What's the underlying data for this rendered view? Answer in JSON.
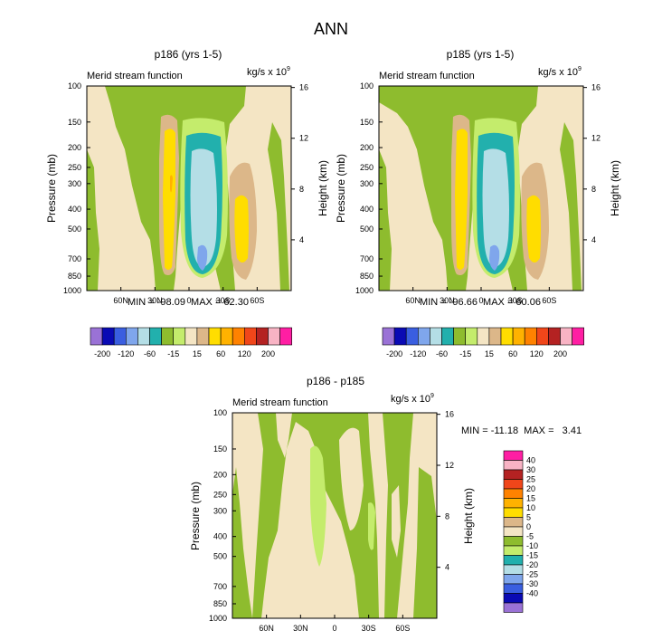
{
  "title": "ANN",
  "colors": {
    "neg200": "#9a72d6",
    "neg120": "#0a0ab4",
    "neg80": "#3a5ee0",
    "neg60": "#7fa6ec",
    "neg40": "#b4dee6",
    "neg25": "#22b0ad",
    "neg15": "#8ebc2e",
    "neg5": "#c4ec6c",
    "zero": "#f4e5c4",
    "pos15": "#dcb789",
    "pos25": "#ffdd00",
    "pos40": "#ffb200",
    "pos60": "#ff8200",
    "pos80": "#f0461a",
    "pos120": "#b42222",
    "pos150": "#f8b3c4",
    "pos200": "#ff1ea3"
  },
  "chart_data": [
    {
      "id": "p186",
      "type": "contour",
      "title": "p186 (yrs 1-5)",
      "subtitle_left": "Merid stream function",
      "units": "kg/s x 10",
      "units_exp": "9",
      "ylabel": "Pressure (mb)",
      "ylabel_right": "Height (km)",
      "ylim": [
        1000,
        100
      ],
      "y_ticks": [
        "100",
        "150",
        "200",
        "250",
        "300",
        "400",
        "500",
        "700",
        "850",
        "1000"
      ],
      "y_tick_values": [
        100,
        150,
        200,
        250,
        300,
        400,
        500,
        700,
        850,
        1000
      ],
      "height_ticks": [
        "16",
        "12",
        "8",
        "4"
      ],
      "height_tick_values": [
        16,
        12,
        8,
        4
      ],
      "x_ticks": [
        "60N",
        "30N",
        "0",
        "30S",
        "60S"
      ],
      "x_tick_values": [
        60,
        30,
        0,
        -30,
        -60
      ],
      "xlim": [
        90,
        -90
      ],
      "stats": "MIN = -98.09  MAX = 62.30",
      "min": -98.09,
      "max": 62.3
    },
    {
      "id": "p185",
      "type": "contour",
      "title": "p185 (yrs 1-5)",
      "subtitle_left": "Merid stream function",
      "units": "kg/s x 10",
      "units_exp": "9",
      "ylabel": "Pressure (mb)",
      "ylabel_right": "Height (km)",
      "ylim": [
        1000,
        100
      ],
      "y_ticks": [
        "100",
        "150",
        "200",
        "250",
        "300",
        "400",
        "500",
        "700",
        "850",
        "1000"
      ],
      "y_tick_values": [
        100,
        150,
        200,
        250,
        300,
        400,
        500,
        700,
        850,
        1000
      ],
      "height_ticks": [
        "16",
        "12",
        "8",
        "4"
      ],
      "height_tick_values": [
        16,
        12,
        8,
        4
      ],
      "x_ticks": [
        "60N",
        "30N",
        "0",
        "30S",
        "60S"
      ],
      "x_tick_values": [
        60,
        30,
        0,
        -30,
        -60
      ],
      "xlim": [
        90,
        -90
      ],
      "stats": "MIN = -96.66  MAX = 60.06",
      "min": -96.66,
      "max": 60.06
    },
    {
      "id": "diff",
      "type": "contour",
      "title": "p186 - p185",
      "subtitle_left": "Merid stream function",
      "units": "kg/s x 10",
      "units_exp": "9",
      "ylabel": "Pressure (mb)",
      "ylabel_right": "Height (km)",
      "ylim": [
        1000,
        100
      ],
      "y_ticks": [
        "100",
        "150",
        "200",
        "250",
        "300",
        "400",
        "500",
        "700",
        "850",
        "1000"
      ],
      "y_tick_values": [
        100,
        150,
        200,
        250,
        300,
        400,
        500,
        700,
        850,
        1000
      ],
      "height_ticks": [
        "16",
        "12",
        "8",
        "4"
      ],
      "height_tick_values": [
        16,
        12,
        8,
        4
      ],
      "x_ticks": [
        "60N",
        "30N",
        "0",
        "30S",
        "60S"
      ],
      "x_tick_values": [
        60,
        30,
        0,
        -30,
        -60
      ],
      "xlim": [
        90,
        -90
      ],
      "stats": "MIN = -11.18  MAX =   3.41",
      "min": -11.18,
      "max": 3.41
    }
  ],
  "top_legend": {
    "labels": [
      "-200",
      "-120",
      "-60",
      "-15",
      "15",
      "60",
      "120",
      "200"
    ],
    "boxes": [
      "neg200",
      "neg120",
      "neg80",
      "neg60",
      "neg40",
      "neg25",
      "neg15",
      "neg5",
      "zero",
      "pos15",
      "pos25",
      "pos40",
      "pos60",
      "pos80",
      "pos120",
      "pos150",
      "pos200"
    ]
  },
  "diff_legend": {
    "labels": [
      "40",
      "30",
      "25",
      "20",
      "15",
      "10",
      "5",
      "0",
      "-5",
      "-10",
      "-15",
      "-20",
      "-25",
      "-30",
      "-40"
    ],
    "boxes": [
      "pos200",
      "pos150",
      "pos120",
      "pos80",
      "pos60",
      "pos40",
      "pos25",
      "pos15",
      "zero",
      "neg15",
      "neg5",
      "neg25",
      "neg40",
      "neg60",
      "neg80",
      "neg120",
      "neg200"
    ]
  }
}
